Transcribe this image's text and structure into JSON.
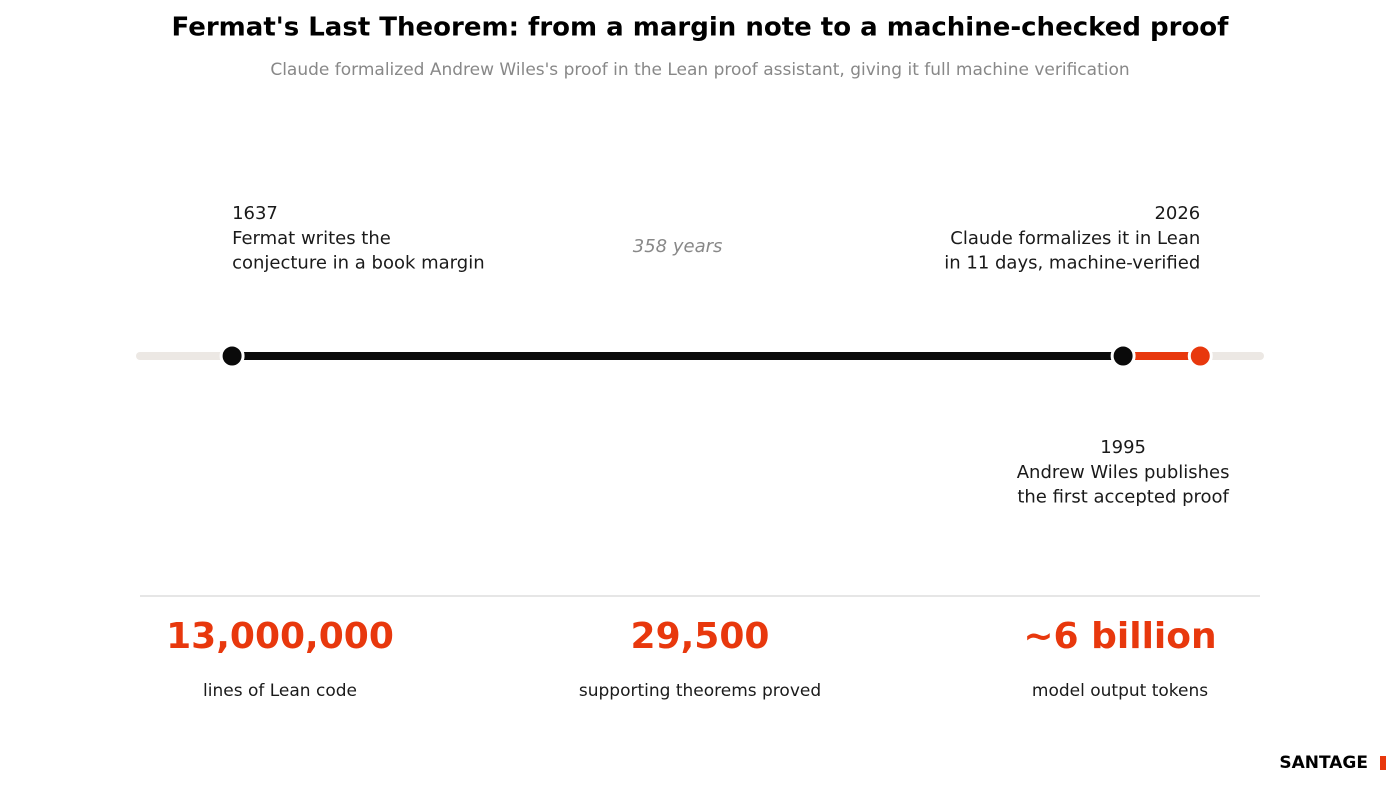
{
  "chart_data": {
    "type": "timeline",
    "title": "Fermat's Last Theorem: from a margin note to a machine-checked proof",
    "subtitle": "Claude formalized Andrew Wiles's proof in the Lean proof assistant, giving it full machine verification",
    "xlim": [
      1600,
      2050
    ],
    "events": [
      {
        "x": 1637,
        "lines": [
          "Fermat writes the",
          "conjecture in a book margin"
        ],
        "side": "above",
        "color": "#0a0a0a"
      },
      {
        "x": 1995,
        "lines": [
          "Andrew Wiles publishes",
          "the first accepted proof"
        ],
        "side": "below",
        "color": "#0a0a0a"
      },
      {
        "x": 2026,
        "lines": [
          "Claude formalizes it in Lean",
          "in 11 days, machine-verified"
        ],
        "side": "above",
        "color": "#e8380d"
      }
    ],
    "span_label": "358 years",
    "stats": [
      {
        "value": "13,000,000",
        "label": "lines of Lean code"
      },
      {
        "value": "29,500",
        "label": "supporting theorems proved"
      },
      {
        "value": "~6 billion",
        "label": "model output tokens"
      }
    ],
    "brand": "SANTAGE"
  }
}
